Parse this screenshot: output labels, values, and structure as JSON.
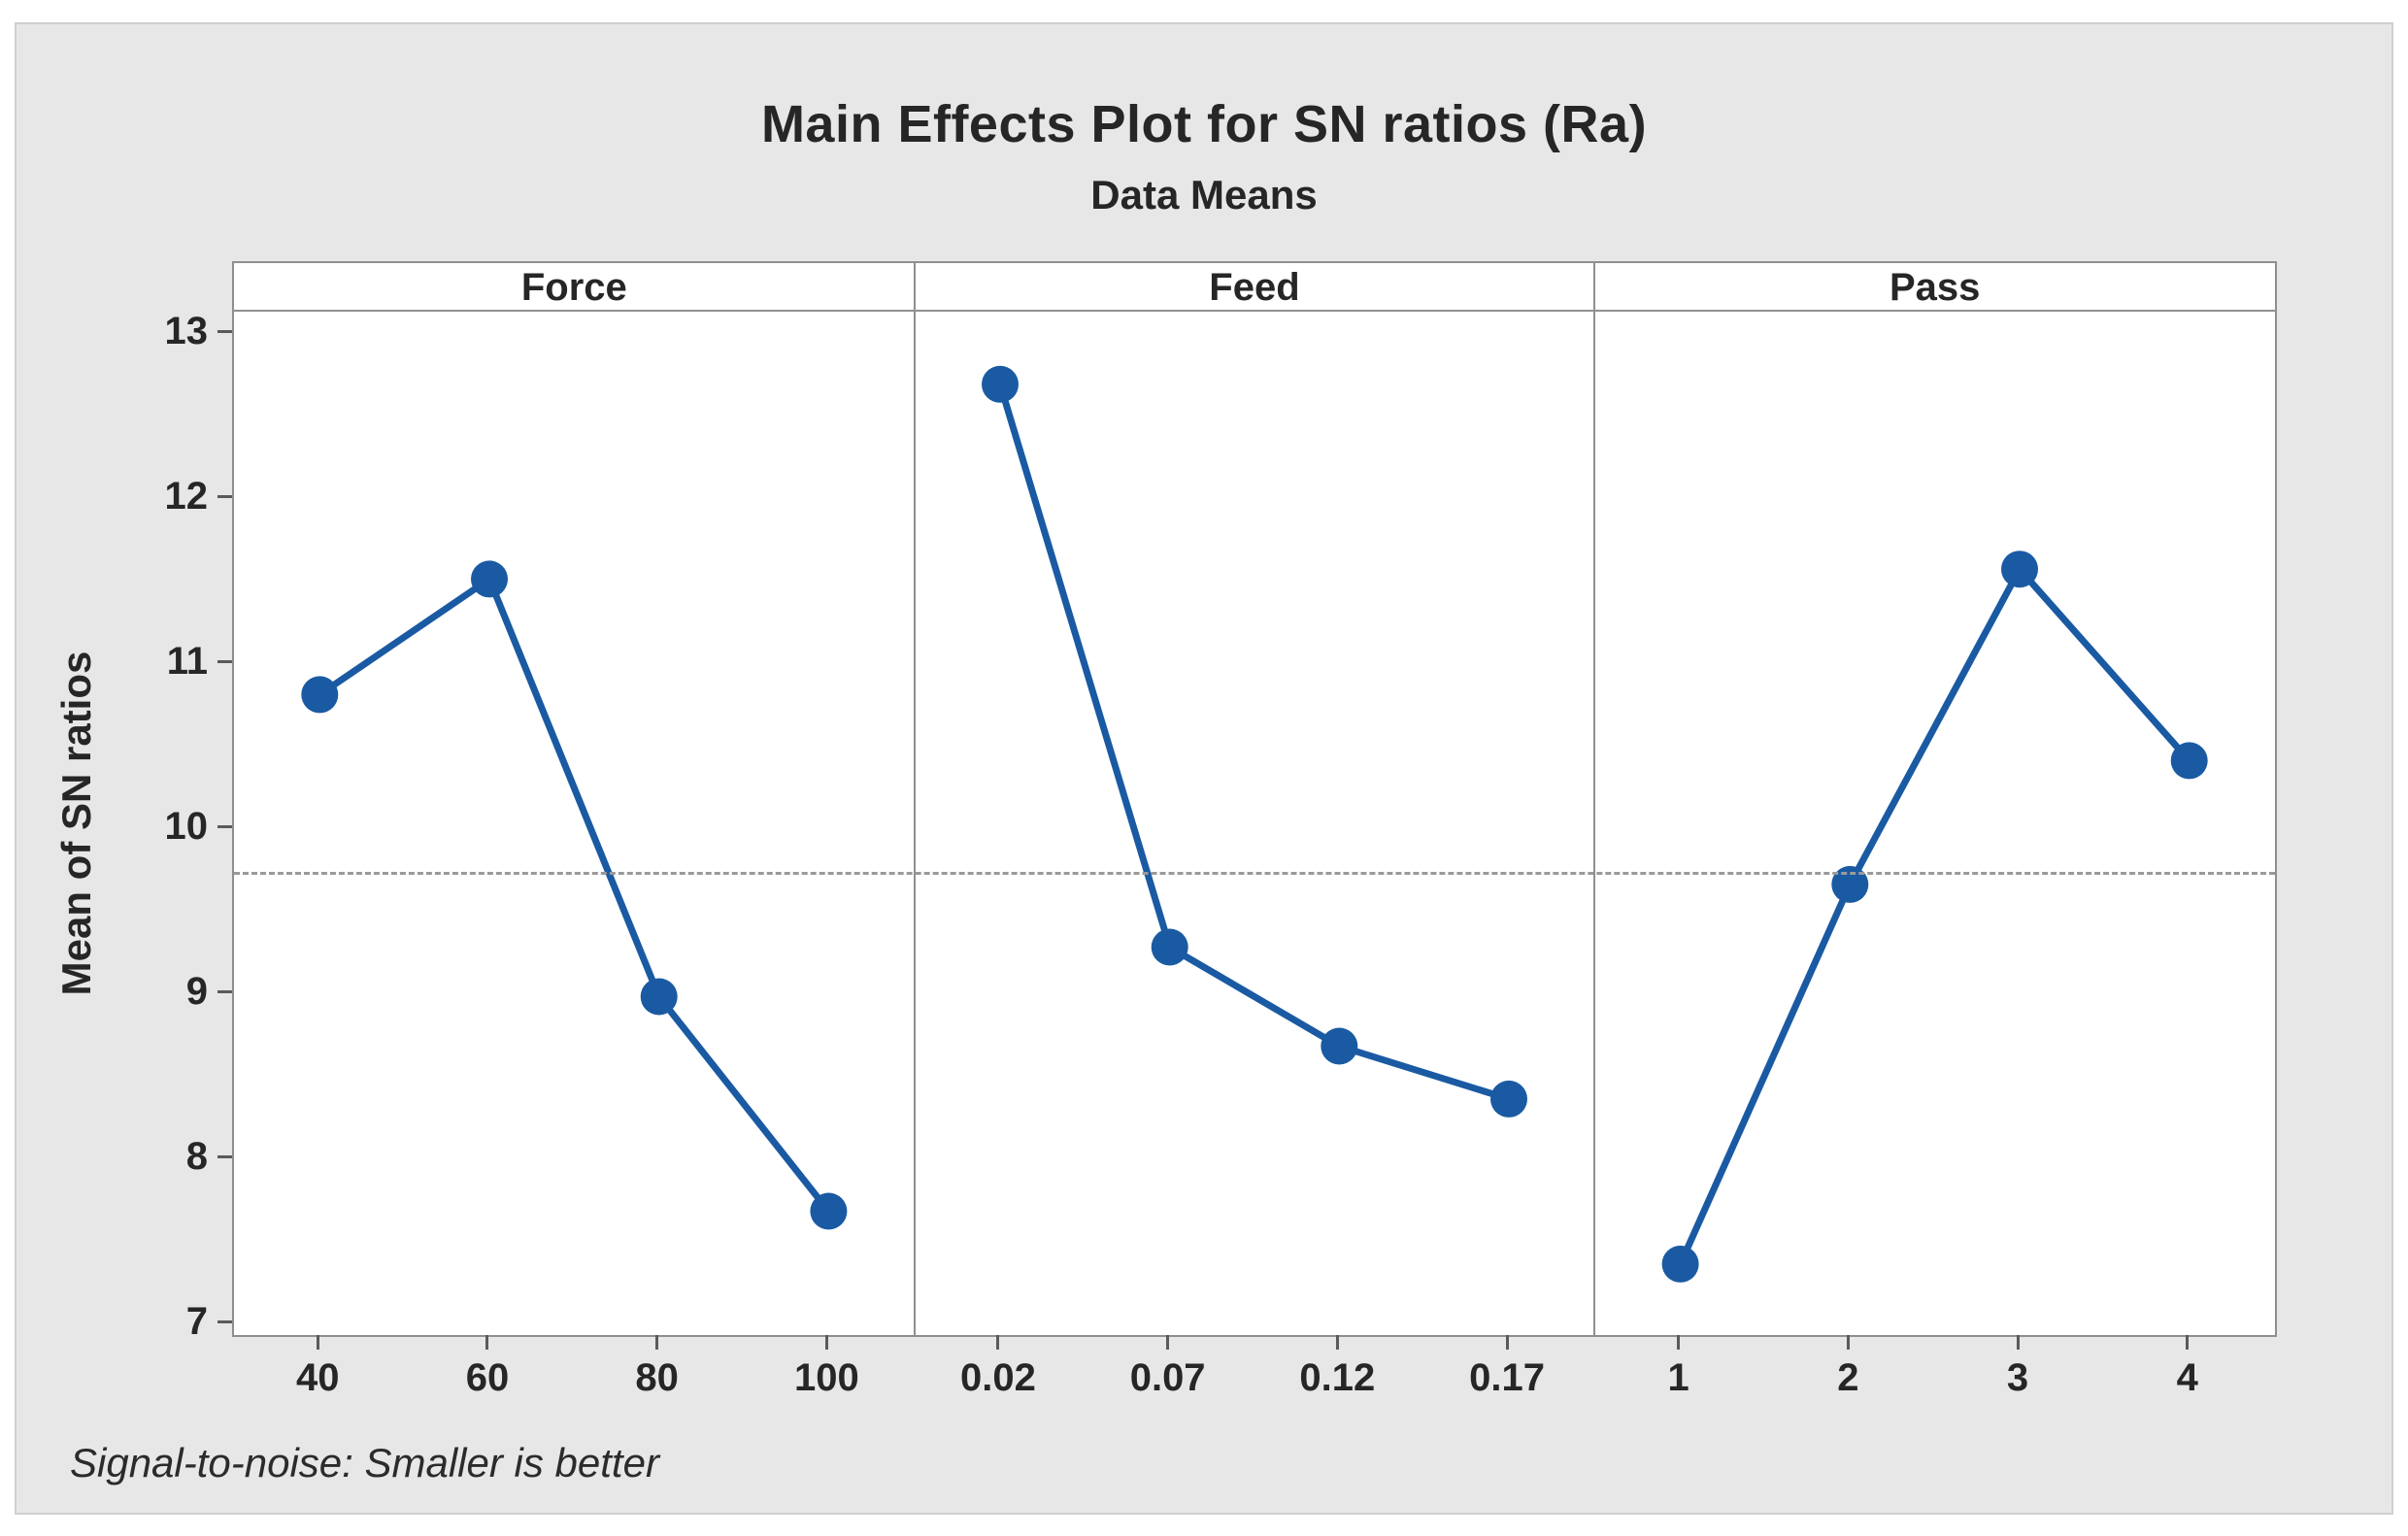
{
  "chart": {
    "title": "Main Effects Plot for SN ratios (Ra)",
    "subtitle": "Data Means",
    "ylabel": "Mean of SN ratios",
    "footnote": "Signal-to-noise: Smaller is better"
  },
  "chart_data": {
    "type": "line",
    "title": "Main Effects Plot for SN ratios (Ra)",
    "subtitle": "Data Means",
    "ylabel": "Mean of SN ratios",
    "footnote": "Signal-to-noise: Smaller is better",
    "ylim": [
      7,
      13
    ],
    "yticks": [
      7,
      8,
      9,
      10,
      11,
      12,
      13
    ],
    "ylim_draw": [
      6.92,
      13.12
    ],
    "grid": false,
    "legend": "none",
    "reference_line": {
      "value": 9.74,
      "style": "dashed"
    },
    "panels": [
      {
        "name": "Force",
        "categories": [
          "40",
          "60",
          "80",
          "100"
        ],
        "values": [
          10.8,
          11.5,
          8.97,
          7.67
        ]
      },
      {
        "name": "Feed",
        "categories": [
          "0.02",
          "0.07",
          "0.12",
          "0.17"
        ],
        "values": [
          12.68,
          9.27,
          8.67,
          8.35
        ]
      },
      {
        "name": "Pass",
        "categories": [
          "1",
          "2",
          "3",
          "4"
        ],
        "values": [
          7.35,
          9.65,
          11.56,
          10.4
        ]
      }
    ],
    "colors": {
      "line": "#1A5AA3",
      "marker": "#1A5AA3",
      "reference": "#9A9A9A",
      "panel_border": "#8F8F8F",
      "figure_background": "#E7E7E7",
      "panel_background": "#FFFFFF",
      "text": "#262626"
    }
  }
}
